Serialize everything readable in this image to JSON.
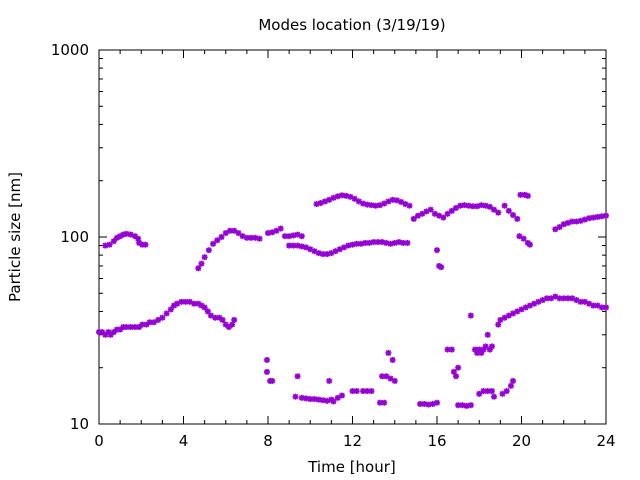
{
  "chart_data": {
    "type": "scatter",
    "title": "Modes location (3/19/19)",
    "xlabel": "Time [hour]",
    "ylabel": "Particle size [nm]",
    "xlim": [
      0,
      24
    ],
    "ylim": [
      10,
      1000
    ],
    "yscale": "log",
    "xticks": [
      0,
      4,
      8,
      12,
      16,
      20,
      24
    ],
    "yticks": [
      10,
      100,
      1000
    ],
    "grid": false,
    "marker_color": "#9400d3",
    "marker": "asterisk",
    "series": [
      {
        "points": [
          [
            0.0,
            31
          ],
          [
            0.15,
            31
          ],
          [
            0.3,
            30
          ],
          [
            0.45,
            31
          ],
          [
            0.55,
            30
          ],
          [
            0.7,
            31
          ],
          [
            0.85,
            32
          ],
          [
            1.0,
            32
          ],
          [
            1.15,
            33
          ],
          [
            1.3,
            33
          ],
          [
            1.5,
            33
          ],
          [
            1.7,
            33
          ],
          [
            1.9,
            33
          ],
          [
            2.05,
            34
          ],
          [
            2.25,
            34
          ],
          [
            2.4,
            35
          ],
          [
            2.6,
            35
          ],
          [
            2.8,
            36
          ],
          [
            3.0,
            37
          ],
          [
            3.2,
            39
          ],
          [
            3.4,
            41
          ],
          [
            3.55,
            43
          ],
          [
            3.7,
            44
          ],
          [
            3.9,
            45
          ],
          [
            4.1,
            45
          ],
          [
            4.3,
            45
          ],
          [
            4.5,
            44
          ],
          [
            4.7,
            44
          ],
          [
            4.85,
            43
          ],
          [
            5.0,
            42
          ],
          [
            5.15,
            40
          ],
          [
            5.3,
            38
          ],
          [
            5.5,
            37
          ],
          [
            5.7,
            37
          ],
          [
            5.85,
            36
          ],
          [
            6.0,
            34
          ],
          [
            6.15,
            33
          ],
          [
            6.3,
            34
          ],
          [
            6.4,
            36
          ],
          [
            9.0,
            90
          ],
          [
            9.2,
            90
          ],
          [
            9.4,
            90
          ],
          [
            9.6,
            89
          ],
          [
            9.8,
            88
          ],
          [
            10.0,
            86
          ],
          [
            10.2,
            84
          ],
          [
            10.4,
            82
          ],
          [
            10.6,
            81
          ],
          [
            10.8,
            81
          ],
          [
            11.0,
            82
          ],
          [
            11.2,
            84
          ],
          [
            11.4,
            86
          ],
          [
            11.6,
            88
          ],
          [
            11.8,
            90
          ],
          [
            12.0,
            91
          ],
          [
            12.2,
            92
          ],
          [
            12.4,
            92
          ],
          [
            12.6,
            93
          ],
          [
            12.8,
            93
          ],
          [
            13.0,
            94
          ],
          [
            13.2,
            94
          ],
          [
            13.4,
            94
          ],
          [
            13.6,
            93
          ],
          [
            13.8,
            92
          ],
          [
            14.0,
            93
          ],
          [
            14.2,
            94
          ],
          [
            14.4,
            93
          ],
          [
            14.6,
            93
          ],
          [
            16.0,
            85
          ],
          [
            16.1,
            70
          ],
          [
            16.2,
            69
          ],
          [
            16.5,
            25
          ],
          [
            16.7,
            25
          ],
          [
            16.8,
            19
          ],
          [
            16.9,
            18
          ],
          [
            17.0,
            20
          ],
          [
            17.6,
            38
          ],
          [
            17.8,
            25
          ],
          [
            17.9,
            24
          ],
          [
            18.0,
            25
          ],
          [
            18.1,
            24
          ],
          [
            18.2,
            25
          ],
          [
            18.3,
            26
          ],
          [
            18.4,
            30
          ],
          [
            18.5,
            25
          ],
          [
            18.6,
            26
          ],
          [
            18.9,
            34
          ],
          [
            19.0,
            36
          ],
          [
            19.2,
            37
          ],
          [
            19.4,
            38
          ],
          [
            19.6,
            39
          ],
          [
            19.8,
            40
          ],
          [
            20.0,
            41
          ],
          [
            20.2,
            42
          ],
          [
            20.4,
            43
          ],
          [
            20.6,
            44
          ],
          [
            20.8,
            45
          ],
          [
            21.0,
            46
          ],
          [
            21.2,
            47
          ],
          [
            21.4,
            47
          ],
          [
            21.6,
            48
          ],
          [
            21.8,
            47
          ],
          [
            22.0,
            47
          ],
          [
            22.2,
            47
          ],
          [
            22.4,
            47
          ],
          [
            22.6,
            46
          ],
          [
            22.8,
            45
          ],
          [
            23.0,
            45
          ],
          [
            23.2,
            44
          ],
          [
            23.4,
            43
          ],
          [
            23.6,
            43
          ],
          [
            23.8,
            42
          ],
          [
            24.0,
            42
          ],
          [
            7.95,
            22
          ],
          [
            7.95,
            19
          ],
          [
            8.1,
            17
          ],
          [
            8.2,
            17
          ],
          [
            9.3,
            14.0
          ],
          [
            9.4,
            18
          ],
          [
            9.6,
            13.8
          ],
          [
            9.8,
            13.7
          ],
          [
            10.0,
            13.6
          ],
          [
            10.2,
            13.6
          ],
          [
            10.4,
            13.5
          ],
          [
            10.6,
            13.4
          ],
          [
            10.8,
            13.3
          ],
          [
            10.9,
            17
          ],
          [
            11.0,
            13.5
          ],
          [
            11.1,
            13.2
          ],
          [
            11.3,
            13.8
          ],
          [
            11.5,
            14.2
          ],
          [
            12.0,
            15
          ],
          [
            12.2,
            15
          ],
          [
            12.5,
            15
          ],
          [
            12.7,
            15
          ],
          [
            12.9,
            15
          ],
          [
            13.3,
            13
          ],
          [
            13.5,
            13
          ],
          [
            13.4,
            18
          ],
          [
            13.6,
            18
          ],
          [
            13.8,
            17.5
          ],
          [
            14.0,
            17
          ],
          [
            13.9,
            22
          ],
          [
            13.7,
            24
          ],
          [
            15.2,
            12.8
          ],
          [
            15.4,
            12.8
          ],
          [
            15.6,
            12.7
          ],
          [
            15.8,
            12.8
          ],
          [
            16.0,
            13
          ],
          [
            17.0,
            12.6
          ],
          [
            17.2,
            12.6
          ],
          [
            17.4,
            12.5
          ],
          [
            17.6,
            12.6
          ],
          [
            18.0,
            14.5
          ],
          [
            18.2,
            15
          ],
          [
            18.4,
            15
          ],
          [
            18.6,
            15
          ],
          [
            18.7,
            14
          ],
          [
            19.1,
            14.5
          ],
          [
            19.3,
            15
          ],
          [
            19.5,
            16
          ],
          [
            19.6,
            17
          ]
        ]
      },
      {
        "points": [
          [
            0.3,
            90
          ],
          [
            0.5,
            91
          ],
          [
            0.7,
            95
          ],
          [
            0.85,
            99
          ],
          [
            1.0,
            101
          ],
          [
            1.15,
            103
          ],
          [
            1.3,
            104
          ],
          [
            1.5,
            103
          ],
          [
            1.7,
            101
          ],
          [
            1.85,
            98
          ],
          [
            1.9,
            93
          ],
          [
            2.05,
            91
          ],
          [
            2.2,
            91
          ],
          [
            4.7,
            68
          ],
          [
            4.85,
            72
          ],
          [
            5.0,
            78
          ],
          [
            5.2,
            85
          ],
          [
            5.4,
            92
          ],
          [
            5.6,
            96
          ],
          [
            5.8,
            100
          ],
          [
            6.0,
            105
          ],
          [
            6.2,
            108
          ],
          [
            6.4,
            108
          ],
          [
            6.6,
            105
          ],
          [
            6.8,
            101
          ],
          [
            7.0,
            99
          ],
          [
            7.2,
            99
          ],
          [
            7.4,
            99
          ],
          [
            7.6,
            98
          ],
          [
            8.0,
            105
          ],
          [
            8.2,
            106
          ],
          [
            8.4,
            108
          ],
          [
            8.6,
            111
          ],
          [
            8.8,
            101
          ],
          [
            9.0,
            101
          ],
          [
            9.2,
            102
          ],
          [
            9.4,
            103
          ],
          [
            9.6,
            101
          ],
          [
            10.3,
            150
          ],
          [
            10.5,
            152
          ],
          [
            10.7,
            155
          ],
          [
            10.9,
            158
          ],
          [
            11.1,
            162
          ],
          [
            11.3,
            165
          ],
          [
            11.5,
            167
          ],
          [
            11.7,
            166
          ],
          [
            11.9,
            164
          ],
          [
            12.1,
            160
          ],
          [
            12.3,
            155
          ],
          [
            12.5,
            151
          ],
          [
            12.7,
            149
          ],
          [
            12.9,
            148
          ],
          [
            13.1,
            147
          ],
          [
            13.3,
            148
          ],
          [
            13.5,
            151
          ],
          [
            13.7,
            155
          ],
          [
            13.9,
            158
          ],
          [
            14.1,
            157
          ],
          [
            14.3,
            154
          ],
          [
            14.5,
            150
          ],
          [
            14.7,
            147
          ],
          [
            14.9,
            125
          ],
          [
            15.1,
            130
          ],
          [
            15.3,
            133
          ],
          [
            15.5,
            137
          ],
          [
            15.7,
            140
          ],
          [
            15.9,
            133
          ],
          [
            16.1,
            130
          ],
          [
            16.3,
            127
          ],
          [
            16.5,
            133
          ],
          [
            16.7,
            138
          ],
          [
            16.9,
            143
          ],
          [
            17.1,
            147
          ],
          [
            17.3,
            148
          ],
          [
            17.5,
            147
          ],
          [
            17.7,
            146
          ],
          [
            17.9,
            146
          ],
          [
            18.1,
            148
          ],
          [
            18.3,
            147
          ],
          [
            18.5,
            145
          ],
          [
            18.7,
            140
          ],
          [
            18.9,
            135
          ],
          [
            19.2,
            147
          ],
          [
            19.4,
            138
          ],
          [
            19.6,
            131
          ],
          [
            19.8,
            125
          ],
          [
            19.9,
            101
          ],
          [
            20.1,
            98
          ],
          [
            20.3,
            93
          ],
          [
            20.4,
            91
          ],
          [
            19.95,
            168
          ],
          [
            20.15,
            168
          ],
          [
            20.3,
            166
          ],
          [
            21.6,
            110
          ],
          [
            21.8,
            113
          ],
          [
            22.0,
            117
          ],
          [
            22.2,
            119
          ],
          [
            22.4,
            121
          ],
          [
            22.6,
            121
          ],
          [
            22.8,
            122
          ],
          [
            23.0,
            124
          ],
          [
            23.2,
            126
          ],
          [
            23.4,
            127
          ],
          [
            23.6,
            128
          ],
          [
            23.8,
            129
          ],
          [
            24.0,
            130
          ]
        ]
      }
    ]
  }
}
